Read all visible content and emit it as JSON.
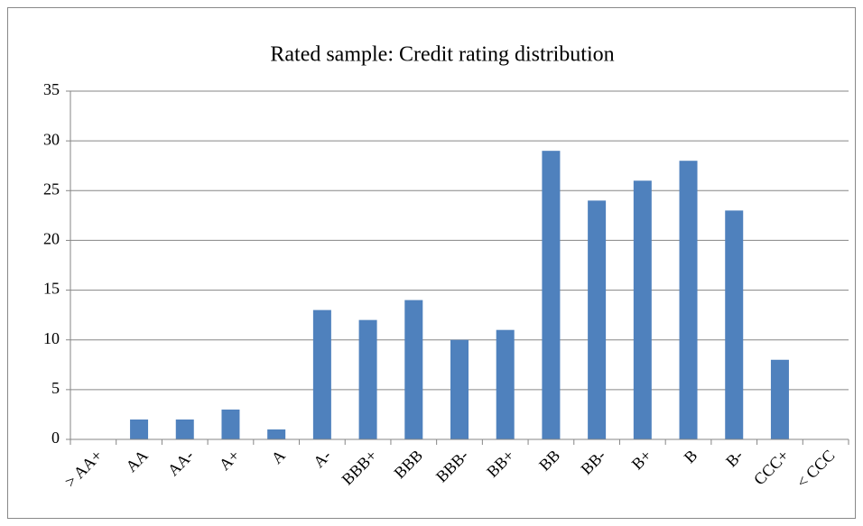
{
  "chart_data": {
    "type": "bar",
    "title": "Rated sample: Credit rating distribution",
    "categories": [
      "> AA+",
      "AA",
      "AA-",
      "A+",
      "A",
      "A-",
      "BBB+",
      "BBB",
      "BBB-",
      "BB+",
      "BB",
      "BB-",
      "B+",
      "B",
      "B-",
      "CCC+",
      "< CCC"
    ],
    "values": [
      0,
      2,
      2,
      3,
      1,
      13,
      12,
      14,
      10,
      11,
      29,
      24,
      26,
      28,
      23,
      8,
      0
    ],
    "color": "#4f81bd",
    "ylim": [
      0,
      35
    ],
    "yticks": [
      0,
      5,
      10,
      15,
      20,
      25,
      30,
      35
    ],
    "grid": true
  }
}
